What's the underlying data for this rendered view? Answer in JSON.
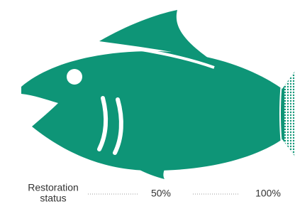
{
  "legend": {
    "label_lines": [
      "Restoration",
      "status"
    ],
    "levels": [
      "50%",
      "100%"
    ]
  }
}
